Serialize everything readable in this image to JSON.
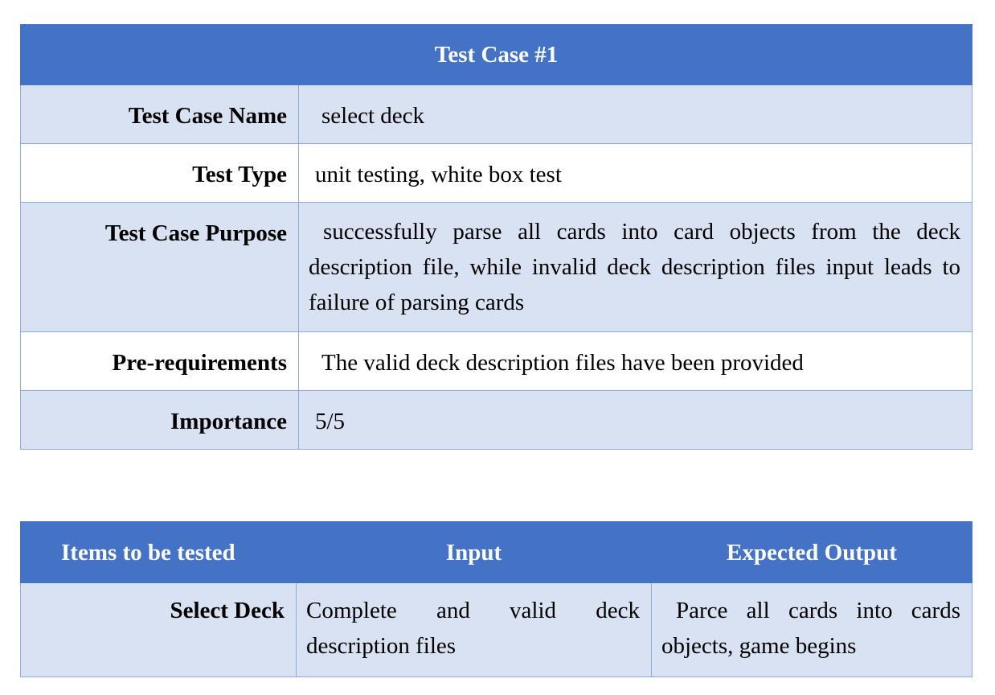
{
  "test_case": {
    "title": "Test Case #1",
    "rows": [
      {
        "label": "Test Case Name",
        "value": "select deck"
      },
      {
        "label": "Test Type",
        "value": "unit testing, white box test"
      },
      {
        "label": "Test Case Purpose",
        "value": "successfully parse all cards into card objects from the deck description file, while invalid deck description files input leads to failure of parsing cards"
      },
      {
        "label": "Pre-requirements",
        "value": "The valid deck description files have been provided"
      },
      {
        "label": "Importance",
        "value": "5/5"
      }
    ]
  },
  "items_table": {
    "headers": [
      "Items to be tested",
      "Input",
      "Expected Output"
    ],
    "rows": [
      {
        "item": "Select Deck",
        "input": "Complete and valid deck description files",
        "expected": "Parce all cards into cards objects, game begins"
      }
    ]
  },
  "colors": {
    "header_bg": "#4472c4",
    "row_shade": "#d9e2f3",
    "border": "#8eaadb"
  }
}
